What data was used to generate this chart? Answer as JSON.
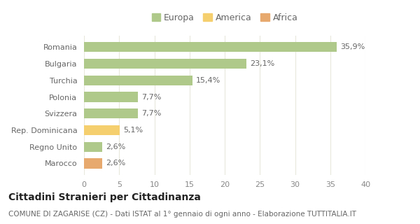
{
  "categories": [
    "Romania",
    "Bulgaria",
    "Turchia",
    "Polonia",
    "Svizzera",
    "Rep. Dominicana",
    "Regno Unito",
    "Marocco"
  ],
  "values": [
    35.9,
    23.1,
    15.4,
    7.7,
    7.7,
    5.1,
    2.6,
    2.6
  ],
  "labels": [
    "35,9%",
    "23,1%",
    "15,4%",
    "7,7%",
    "7,7%",
    "5,1%",
    "2,6%",
    "2,6%"
  ],
  "colors": [
    "#aec98a",
    "#aec98a",
    "#aec98a",
    "#aec98a",
    "#aec98a",
    "#f5ce6e",
    "#aec98a",
    "#e8a96e"
  ],
  "legend": [
    {
      "label": "Europa",
      "color": "#aec98a"
    },
    {
      "label": "America",
      "color": "#f5ce6e"
    },
    {
      "label": "Africa",
      "color": "#e8a96e"
    }
  ],
  "xlim": [
    0,
    40
  ],
  "xticks": [
    0,
    5,
    10,
    15,
    20,
    25,
    30,
    35,
    40
  ],
  "title": "Cittadini Stranieri per Cittadinanza",
  "subtitle": "COMUNE DI ZAGARISE (CZ) - Dati ISTAT al 1° gennaio di ogni anno - Elaborazione TUTTITALIA.IT",
  "background_color": "#ffffff",
  "grid_color": "#e8e8dc",
  "bar_height": 0.6,
  "title_fontsize": 10,
  "subtitle_fontsize": 7.5,
  "label_fontsize": 8,
  "tick_fontsize": 8,
  "legend_fontsize": 9
}
